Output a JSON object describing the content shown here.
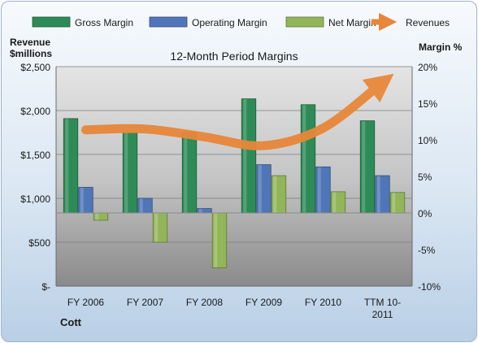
{
  "chart_data": {
    "type": "bar",
    "title": "12-Month Period Margins",
    "ylabel_left": "Revenue $millions",
    "ylabel_right": "Margin %",
    "company": "Cott",
    "categories": [
      "FY 2006",
      "FY 2007",
      "FY 2008",
      "FY 2009",
      "FY 2010",
      "TTM 10-2011"
    ],
    "category_label_lines": [
      [
        "FY 2006"
      ],
      [
        "FY 2007"
      ],
      [
        "FY 2008"
      ],
      [
        "FY 2009"
      ],
      [
        "FY 2010"
      ],
      [
        "TTM 10-",
        "2011"
      ]
    ],
    "left_axis": {
      "min": 0,
      "max": 2500,
      "step": 500,
      "tick_labels": [
        "$-",
        "$500",
        "$1,000",
        "$1,500",
        "$2,000",
        "$2,500"
      ]
    },
    "right_axis": {
      "min": -10,
      "max": 20,
      "step": 5,
      "tick_labels": [
        "-10%",
        "-5%",
        "0%",
        "5%",
        "10%",
        "15%",
        "20%"
      ]
    },
    "grid": true,
    "legend_position": "top",
    "series": [
      {
        "name": "Gross Margin",
        "kind": "bar",
        "axis": "right",
        "color": "#2e8b57",
        "values": [
          12.9,
          11.0,
          11.0,
          15.6,
          14.8,
          12.6
        ]
      },
      {
        "name": "Operating Margin",
        "kind": "bar",
        "axis": "right",
        "color": "#4f76b8",
        "values": [
          3.5,
          2.0,
          0.6,
          6.6,
          6.3,
          5.1
        ]
      },
      {
        "name": "Net Margin",
        "kind": "bar",
        "axis": "right",
        "color": "#93b559",
        "values": [
          -1.0,
          -4.0,
          -7.5,
          5.1,
          2.9,
          2.8
        ]
      },
      {
        "name": "Revenues",
        "kind": "line",
        "axis": "left",
        "color": "#e8873a",
        "values": [
          1780,
          1790,
          1700,
          1600,
          1800,
          2320
        ]
      }
    ]
  }
}
